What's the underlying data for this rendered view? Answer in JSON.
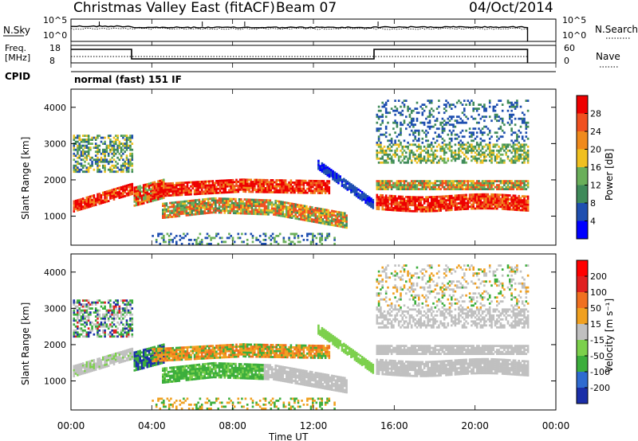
{
  "header": {
    "title": "Christmas Valley East (fitACF)",
    "beam": "Beam 07",
    "date": "04/Oct/2014"
  },
  "nsky_panel": {
    "left_label": "N.Sky",
    "right_label": "N.Search",
    "left_ticks": [
      "10^5",
      "10^0"
    ],
    "right_ticks": [
      "10^5",
      "10^0"
    ]
  },
  "freq_panel": {
    "left_label_1": "Freq.",
    "left_label_2": "[MHz]",
    "right_label": "Nave",
    "left_ticks": [
      "18",
      "8"
    ],
    "right_ticks": [
      "60",
      "0"
    ]
  },
  "cpid": {
    "label": "CPID",
    "mode": "normal (fast) 151 IF"
  },
  "chart_data": [
    {
      "type": "heatmap",
      "name": "power",
      "ylabel": "Slant Range [km]",
      "yticks": [
        1000,
        2000,
        3000,
        4000
      ],
      "ylim": [
        200,
        4500
      ],
      "xlim": [
        0,
        24
      ],
      "colorbar_label": "Power [dB]",
      "colorbar_ticks": [
        "4",
        "8",
        "12",
        "16",
        "20",
        "24",
        "28"
      ],
      "colors": [
        "#0000ff",
        "#1f4fb0",
        "#3f8a5a",
        "#6aaf5a",
        "#f0c020",
        "#f08a1c",
        "#f05020",
        "#ee0000"
      ]
    },
    {
      "type": "heatmap",
      "name": "velocity",
      "ylabel": "Slant Range [km]",
      "yticks": [
        1000,
        2000,
        3000,
        4000
      ],
      "ylim": [
        200,
        4500
      ],
      "xlim": [
        0,
        24
      ],
      "colorbar_label": "Velocity [m s⁻¹]",
      "colorbar_ticks": [
        "200",
        "100",
        "50",
        "15",
        "-15",
        "-50",
        "-100",
        "-200"
      ],
      "colors": [
        "#1a2ea8",
        "#2f6bd0",
        "#3cae3c",
        "#7cd04c",
        "#c0c0c0",
        "#f0a020",
        "#f07020",
        "#e02020",
        "#ff0000"
      ]
    }
  ],
  "x_axis": {
    "label": "Time UT",
    "ticks": [
      "00:00",
      "04:00",
      "08:00",
      "12:00",
      "16:00",
      "20:00",
      "00:00"
    ]
  }
}
